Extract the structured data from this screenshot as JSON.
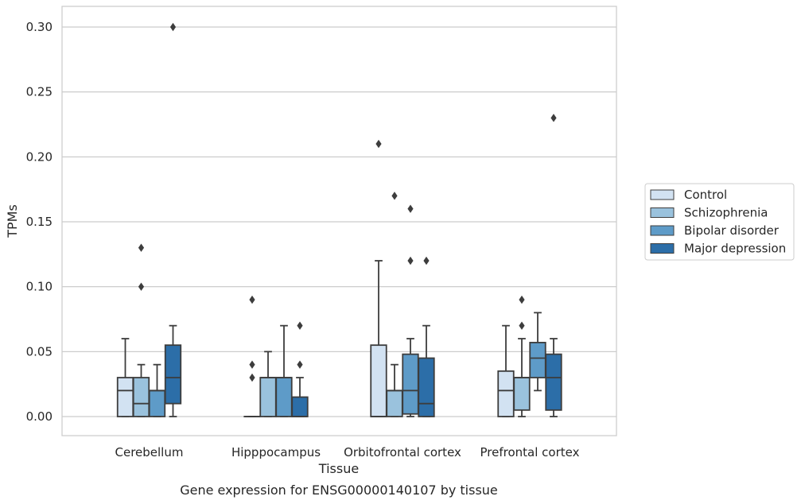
{
  "chart_data": {
    "type": "box",
    "title": "",
    "caption": "Gene expression for ENSG00000140107 by tissue",
    "xlabel": "Tissue",
    "ylabel": "TPMs",
    "ylim": [
      -0.015,
      0.315
    ],
    "yticks": [
      "0.00",
      "0.05",
      "0.10",
      "0.15",
      "0.20",
      "0.25",
      "0.30"
    ],
    "ytick_values": [
      0,
      0.05,
      0.1,
      0.15,
      0.2,
      0.25,
      0.3
    ],
    "grid": "horizontal",
    "legend_position": "right",
    "categories": [
      "Cerebellum",
      "Hipppocampus",
      "Orbitofrontal cortex",
      "Prefrontal cortex"
    ],
    "series": [
      {
        "name": "Control",
        "color": "#d2e2f2",
        "boxes": [
          {
            "whisker_low": 0,
            "q1": 0,
            "median": 0.02,
            "q3": 0.03,
            "whisker_high": 0.06,
            "outliers": []
          },
          {
            "whisker_low": 0,
            "q1": 0,
            "median": 0,
            "q3": 0,
            "whisker_high": 0,
            "outliers": [
              0.09,
              0.04,
              0.03
            ]
          },
          {
            "whisker_low": 0,
            "q1": 0,
            "median": 0,
            "q3": 0.055,
            "whisker_high": 0.12,
            "outliers": [
              0.21
            ]
          },
          {
            "whisker_low": 0,
            "q1": 0,
            "median": 0.02,
            "q3": 0.035,
            "whisker_high": 0.07,
            "outliers": []
          }
        ]
      },
      {
        "name": "Schizophrenia",
        "color": "#9ac2dd",
        "boxes": [
          {
            "whisker_low": 0,
            "q1": 0,
            "median": 0.01,
            "q3": 0.03,
            "whisker_high": 0.04,
            "outliers": [
              0.13,
              0.1
            ]
          },
          {
            "whisker_low": 0,
            "q1": 0,
            "median": 0.03,
            "q3": 0.03,
            "whisker_high": 0.05,
            "outliers": []
          },
          {
            "whisker_low": 0,
            "q1": 0,
            "median": 0.02,
            "q3": 0.02,
            "whisker_high": 0.04,
            "outliers": [
              0.17
            ]
          },
          {
            "whisker_low": 0,
            "q1": 0.005,
            "median": 0.03,
            "q3": 0.03,
            "whisker_high": 0.06,
            "outliers": [
              0.09,
              0.07
            ]
          }
        ]
      },
      {
        "name": "Bipolar disorder",
        "color": "#5e9bc8",
        "boxes": [
          {
            "whisker_low": 0,
            "q1": 0,
            "median": 0.02,
            "q3": 0.02,
            "whisker_high": 0.04,
            "outliers": []
          },
          {
            "whisker_low": 0,
            "q1": 0,
            "median": 0.03,
            "q3": 0.03,
            "whisker_high": 0.07,
            "outliers": []
          },
          {
            "whisker_low": 0,
            "q1": 0.002,
            "median": 0.02,
            "q3": 0.048,
            "whisker_high": 0.06,
            "outliers": [
              0.16,
              0.12
            ]
          },
          {
            "whisker_low": 0.02,
            "q1": 0.03,
            "median": 0.045,
            "q3": 0.057,
            "whisker_high": 0.08,
            "outliers": []
          }
        ]
      },
      {
        "name": "Major depression",
        "color": "#2c6ea8",
        "boxes": [
          {
            "whisker_low": 0,
            "q1": 0.01,
            "median": 0.03,
            "q3": 0.055,
            "whisker_high": 0.07,
            "outliers": [
              0.3
            ]
          },
          {
            "whisker_low": 0,
            "q1": 0,
            "median": 0,
            "q3": 0.015,
            "whisker_high": 0.03,
            "outliers": [
              0.07,
              0.04
            ]
          },
          {
            "whisker_low": 0,
            "q1": 0,
            "median": 0.01,
            "q3": 0.045,
            "whisker_high": 0.07,
            "outliers": [
              0.12
            ]
          },
          {
            "whisker_low": 0,
            "q1": 0.005,
            "median": 0.03,
            "q3": 0.048,
            "whisker_high": 0.06,
            "outliers": [
              0.23
            ]
          }
        ]
      }
    ]
  }
}
